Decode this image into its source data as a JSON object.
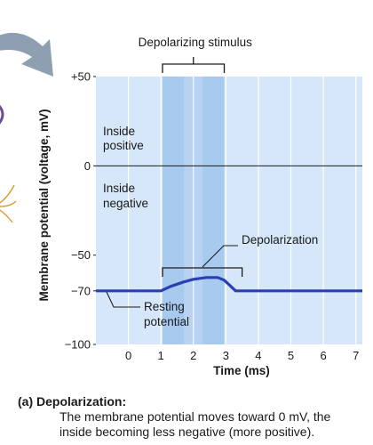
{
  "chart_data": {
    "type": "line",
    "title": "",
    "xlabel": "Time (ms)",
    "ylabel": "Membrane potential (voltage, mV)",
    "xlim": [
      -1,
      7.2
    ],
    "ylim": [
      -100,
      50
    ],
    "x_ticks": [
      0,
      1,
      2,
      3,
      4,
      5,
      6,
      7
    ],
    "y_ticks": [
      {
        "value": 50,
        "label": "+50"
      },
      {
        "value": 0,
        "label": "0"
      },
      {
        "value": -50,
        "label": "−50"
      },
      {
        "value": -70,
        "label": "−70"
      },
      {
        "value": -100,
        "label": "−100"
      }
    ],
    "grid": "vertical",
    "zero_line": true,
    "series": [
      {
        "x": [
          -1,
          0,
          1,
          1.3,
          1.7,
          2.0,
          2.4,
          2.75,
          2.95,
          3.3,
          4,
          5,
          6,
          7.2
        ],
        "y": [
          -70,
          -70,
          -70,
          -67.5,
          -65,
          -63.5,
          -62.5,
          -62.5,
          -64,
          -70,
          -70,
          -70,
          -70,
          -70
        ],
        "color": "#2b40b0"
      }
    ],
    "stimulus_band": {
      "start": 1.05,
      "end": 2.95,
      "label": "Depolarizing stimulus"
    },
    "annotations": {
      "inside_positive": [
        "Inside",
        "positive"
      ],
      "inside_negative": [
        "Inside",
        "negative"
      ],
      "depolarization": "Depolarization",
      "resting_potential": [
        "Resting",
        "potential"
      ]
    },
    "colors": {
      "plot_background": "#d5e7f8",
      "stimulus_band": "#a8caee",
      "stimulus_band_center": "#bcd6f2",
      "grid": "#ffffff",
      "trace": "#2b40b0",
      "arrow": "#8f9fb2"
    }
  },
  "caption": {
    "lead": "(a) Depolarization:",
    "text": "The membrane potential moves toward 0 mV, the inside becoming less negative (more positive)."
  }
}
